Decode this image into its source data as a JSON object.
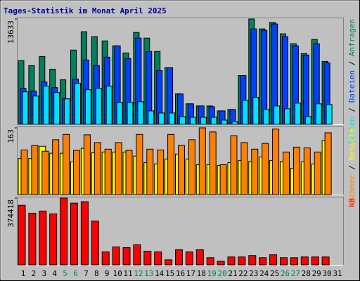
{
  "chart_data": {
    "type": "bar",
    "title": "Tages-Statistik im Monat April 2025",
    "title_color": "#0000A0",
    "categories": [
      "1",
      "2",
      "3",
      "4",
      "5",
      "6",
      "7",
      "8",
      "9",
      "10",
      "11",
      "12",
      "13",
      "14",
      "15",
      "16",
      "17",
      "18",
      "19",
      "20",
      "21",
      "22",
      "23",
      "24",
      "25",
      "26",
      "27",
      "28",
      "29",
      "30",
      "31"
    ],
    "category_colors": [
      "#000000",
      "#000000",
      "#000000",
      "#000000",
      "#00805C",
      "#00805C",
      "#000000",
      "#000000",
      "#000000",
      "#000000",
      "#000000",
      "#00805C",
      "#00805C",
      "#000000",
      "#000000",
      "#000000",
      "#000000",
      "#000000",
      "#00805C",
      "#00805C",
      "#000000",
      "#000000",
      "#000000",
      "#000000",
      "#000000",
      "#00805C",
      "#00805C",
      "#000000",
      "#000000",
      "#000000",
      "#000000"
    ],
    "legend_separator": "/",
    "panels": [
      {
        "ylim": [
          0,
          13633
        ],
        "yticks": [
          13633
        ],
        "series": [
          {
            "name": "Anfragen",
            "color": "#00805C",
            "values": [
              8235,
              7595,
              8784,
              7137,
              5765,
              9608,
              11987,
              11346,
              10797,
              10157,
              9242,
              11895,
              11163,
              9425,
              7320,
              3935,
              2654,
              2379,
              2379,
              1739,
              1922,
              6314,
              13633,
              12353,
              13176,
              11712,
              10431,
              9150,
              10980,
              8144,
              null
            ]
          },
          {
            "name": "Dateien",
            "color": "#0040FF",
            "values": [
              4667,
              4301,
              5490,
              4758,
              3294,
              5856,
              8327,
              7595,
              8693,
              10157,
              8510,
              11163,
              9425,
              6954,
              7320,
              3935,
              2654,
              2379,
              2288,
              1739,
              1922,
              6314,
              12353,
              12170,
              12993,
              11346,
              10157,
              8967,
              10431,
              7961,
              null
            ]
          },
          {
            "name": "Seiten",
            "color": "#00E0FF",
            "values": [
              4209,
              3660,
              4941,
              4118,
              3294,
              5307,
              4484,
              4667,
              4941,
              2837,
              2837,
              2928,
              1739,
              1464,
              1464,
              1007,
              915,
              915,
              915,
              549,
              366,
              3111,
              3477,
              1922,
              2379,
              2013,
              2745,
              1007,
              2654,
              2562,
              null
            ]
          }
        ]
      },
      {
        "ylim": [
          0,
          163
        ],
        "yticks": [
          163
        ],
        "series": [
          {
            "name": "Besuche",
            "color": "#FFFF00",
            "values": [
              88,
              88,
              118,
              101,
              101,
              80,
              113,
              102,
              104,
              104,
              104,
              94,
              78,
              75,
              87,
              99,
              87,
              73,
              73,
              71,
              78,
              83,
              81,
              92,
              83,
              81,
              64,
              80,
              75,
              132,
              null
            ]
          },
          {
            "name": "Rechner",
            "color": "#FF8000",
            "values": [
              109,
              120,
              106,
              134,
              147,
              108,
              146,
              127,
              111,
              127,
              108,
              147,
              111,
              109,
              147,
              120,
              134,
              163,
              153,
              73,
              144,
              127,
              111,
              125,
              160,
              104,
              116,
              114,
              104,
              151,
              null
            ]
          }
        ]
      },
      {
        "ylim": [
          0,
          374418
        ],
        "yticks": [
          374418
        ],
        "series": [
          {
            "name": "kB",
            "color": "#FF0000",
            "values": [
              334158,
              289872,
              301950,
              285846,
              374418,
              346236,
              354288,
              245586,
              72468,
              100650,
              96624,
              112728,
              76494,
              72468,
              28182,
              84546,
              72468,
              84546,
              40260,
              20130,
              44286,
              44286,
              52338,
              40260,
              56364,
              40260,
              40260,
              44286,
              44286,
              44286,
              null
            ]
          }
        ]
      }
    ]
  }
}
